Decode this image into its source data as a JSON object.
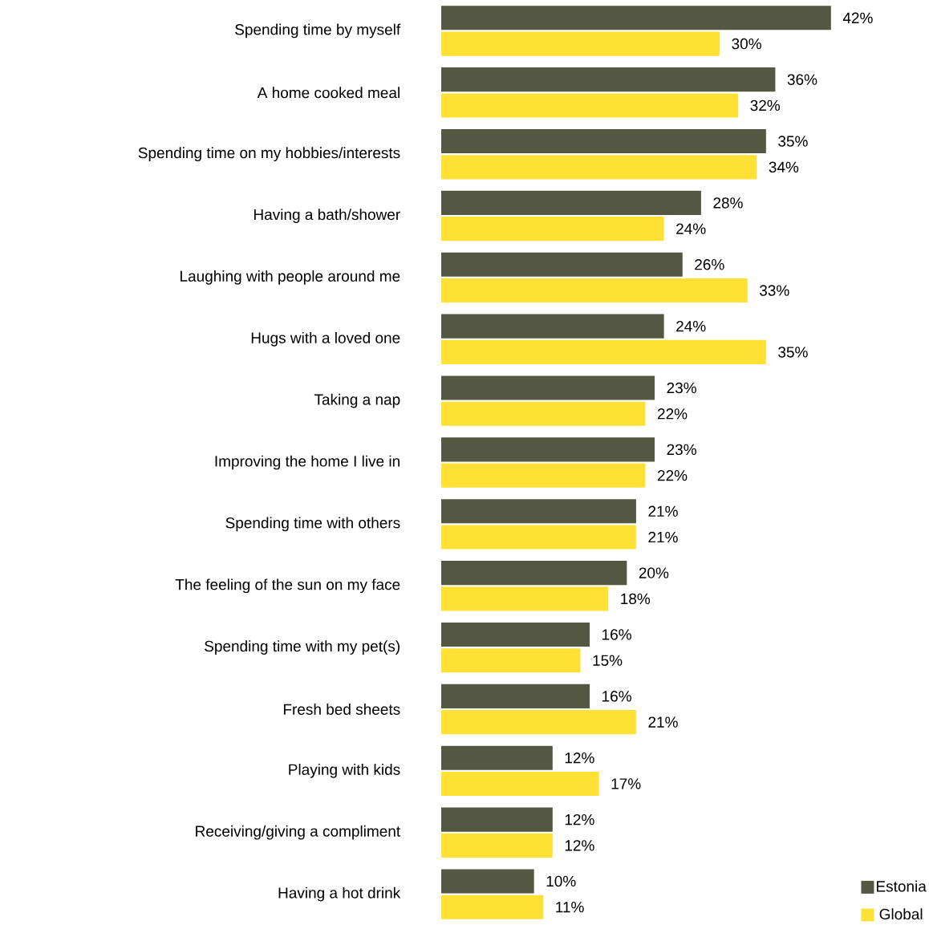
{
  "chart_data": {
    "type": "bar",
    "orientation": "horizontal",
    "legend": "bottom right",
    "categories": [
      "Spending time by myself",
      "A home cooked meal",
      "Spending time on my hobbies/interests",
      "Having a bath/shower",
      "Laughing with people around me",
      "Hugs with a loved one",
      "Taking a nap",
      "Improving the home I live in",
      "Spending time with others",
      "The feeling of the sun on my face",
      "Spending time with my pet(s)",
      "Fresh bed sheets",
      "Playing with kids",
      "Receiving/giving a compliment",
      "Having a hot drink"
    ],
    "series": [
      {
        "name": "Estonia",
        "color": "#545741",
        "values": [
          42,
          36,
          35,
          28,
          26,
          24,
          23,
          23,
          21,
          20,
          16,
          16,
          12,
          12,
          10
        ],
        "value_labels": [
          "42%",
          "36%",
          "35%",
          "28%",
          "26%",
          "24%",
          "23%",
          "23%",
          "21%",
          "20%",
          "16%",
          "16%",
          "12%",
          "12%",
          "10%"
        ]
      },
      {
        "name": "Global",
        "color": "#ffe135",
        "values": [
          30,
          32,
          34,
          24,
          33,
          35,
          22,
          22,
          21,
          18,
          15,
          21,
          17,
          12,
          11
        ],
        "value_labels": [
          "30%",
          "32%",
          "34%",
          "24%",
          "33%",
          "35%",
          "22%",
          "22%",
          "21%",
          "18%",
          "15%",
          "21%",
          "17%",
          "12%",
          "11%"
        ]
      }
    ]
  }
}
